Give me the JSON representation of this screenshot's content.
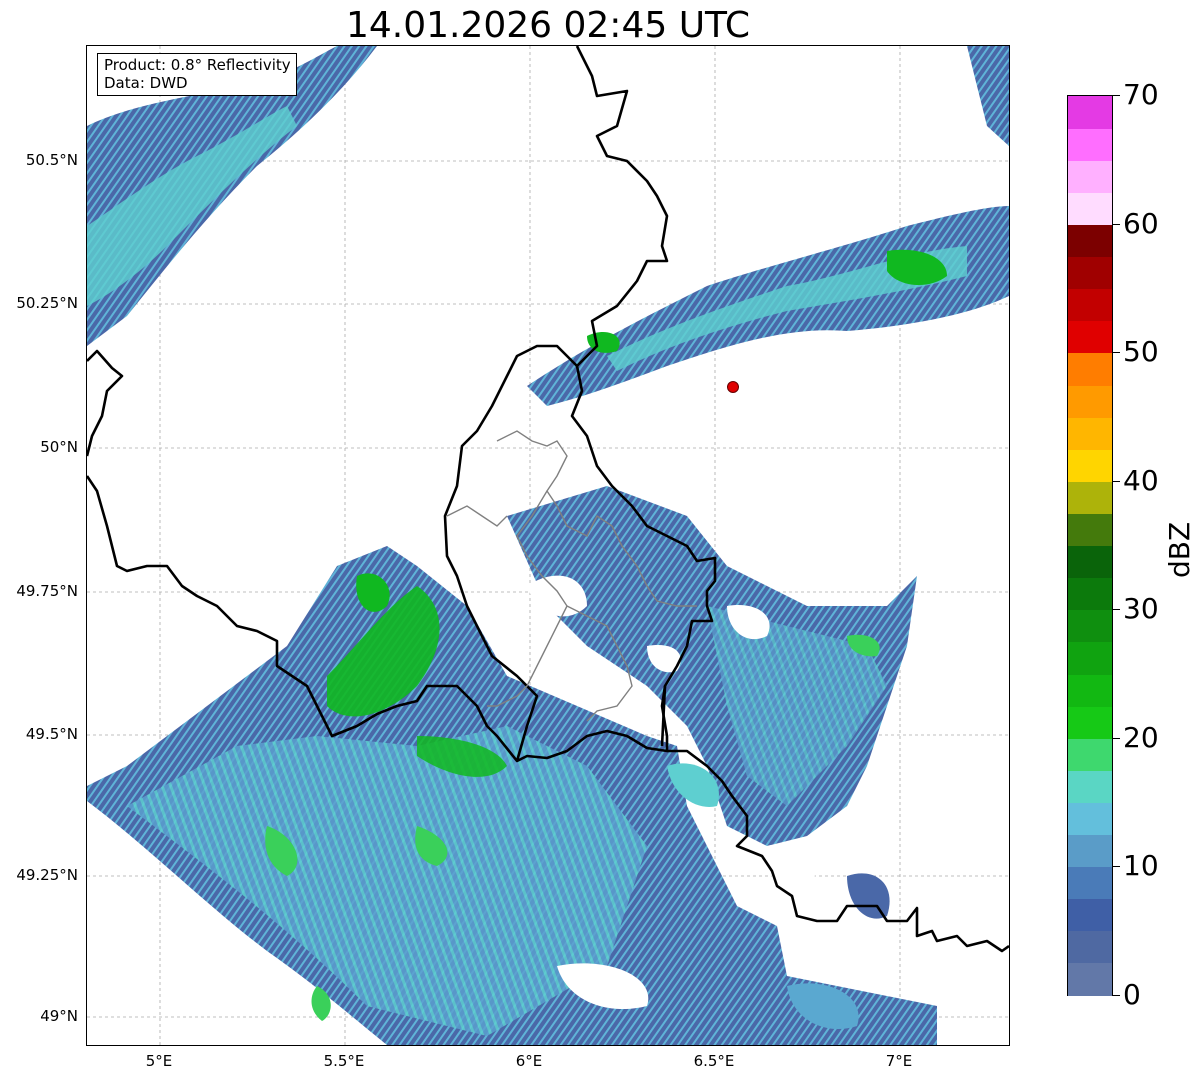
{
  "title": "14.01.2026 02:45 UTC",
  "info": {
    "product": "Product: 0.8° Reflectivity",
    "data": "Data: DWD"
  },
  "axes": {
    "y_ticks": [
      "50.5°N",
      "50.25°N",
      "50°N",
      "49.75°N",
      "49.5°N",
      "49.25°N",
      "49°N"
    ],
    "x_ticks": [
      "5°E",
      "5.5°E",
      "6°E",
      "6.5°E",
      "7°E"
    ]
  },
  "colorbar": {
    "label": "dBZ",
    "tick_labels": [
      "0",
      "10",
      "20",
      "30",
      "40",
      "50",
      "60",
      "70"
    ],
    "range": [
      0,
      70
    ],
    "step": 2.5,
    "colors": [
      "#6278a8",
      "#4f69a2",
      "#3f5fa6",
      "#4a7bb8",
      "#5a9cc8",
      "#63bfdc",
      "#5ad6c4",
      "#3ed86e",
      "#16c916",
      "#12b812",
      "#10a310",
      "#0f8f0f",
      "#0c7a0c",
      "#0a640a",
      "#447a0c",
      "#adb30a",
      "#ffd500",
      "#ffb600",
      "#ff9a00",
      "#ff7d00",
      "#e00000",
      "#c20000",
      "#a00000",
      "#7c0000",
      "#ffdcff",
      "#ffb0ff",
      "#ff6eff",
      "#e43ae4"
    ]
  },
  "map": {
    "echo_colors": {
      "light": "#4a68a8",
      "medium": "#5aa8d0",
      "cyan": "#5ecfd0",
      "green": "#3ad05a",
      "dark_green": "#10b820"
    },
    "site_marker": "radar-site"
  }
}
